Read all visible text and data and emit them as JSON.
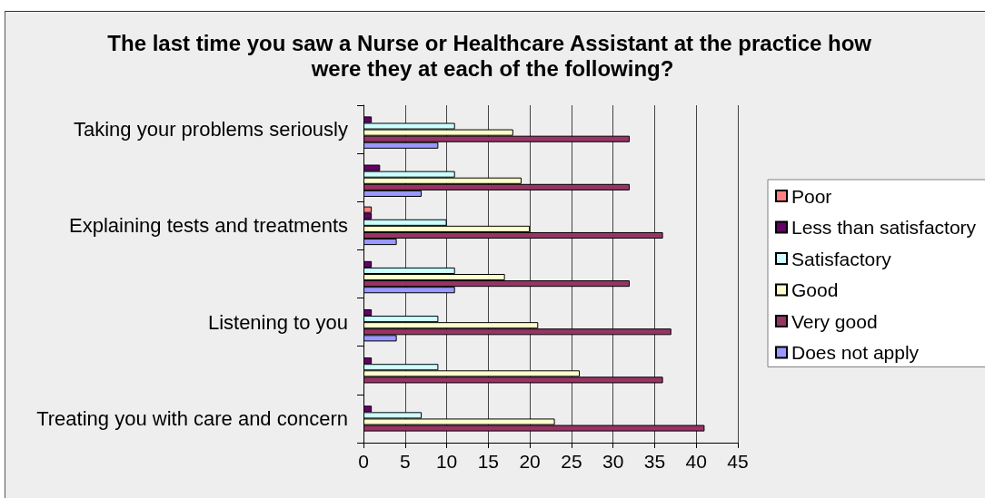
{
  "chart_data": {
    "type": "bar",
    "orientation": "horizontal",
    "title": "The last time you saw a Nurse or Healthcare Assistant at the practice how were they at each of the following?",
    "categories": [
      "Taking your problems seriously",
      null,
      "Explaining tests and treatments",
      null,
      "Listening to you",
      null,
      "Treating you with care and concern"
    ],
    "series": [
      {
        "name": "Poor",
        "color": "#ff8080",
        "values": [
          null,
          null,
          1,
          null,
          null,
          null,
          null
        ]
      },
      {
        "name": "Less than satisfactory",
        "color": "#660066",
        "values": [
          1,
          2,
          1,
          1,
          1,
          1,
          1
        ]
      },
      {
        "name": "Satisfactory",
        "color": "#ccffff",
        "values": [
          11,
          11,
          10,
          11,
          9,
          9,
          7
        ]
      },
      {
        "name": "Good",
        "color": "#ffffcc",
        "values": [
          18,
          19,
          20,
          17,
          21,
          26,
          23
        ]
      },
      {
        "name": "Very good",
        "color": "#993366",
        "values": [
          32,
          32,
          36,
          32,
          37,
          36,
          41
        ]
      },
      {
        "name": "Does not apply",
        "color": "#9999ff",
        "values": [
          9,
          7,
          4,
          11,
          4,
          null,
          null
        ]
      }
    ],
    "xlim": [
      0,
      45
    ],
    "xticks": [
      0,
      5,
      10,
      15,
      20,
      25,
      30,
      35,
      40,
      45
    ],
    "grid": "x",
    "legend": "right"
  }
}
